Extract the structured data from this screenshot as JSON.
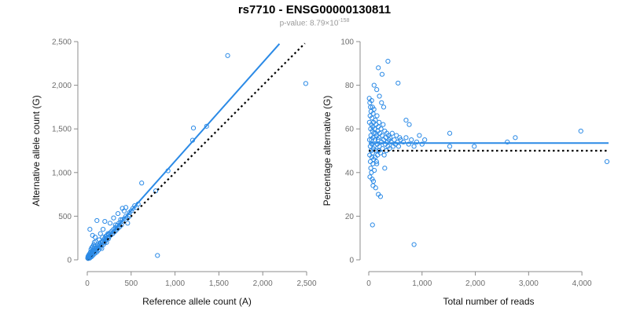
{
  "header": {
    "title": "rs7710 - ENSG00000130811",
    "pvalue_prefix": "p-value: 8.79×10",
    "pvalue_exponent": "-158"
  },
  "colors": {
    "points": "#2b8ae6",
    "fit_line": "#2b8ae6",
    "reference_line": "#000000",
    "axis": "#8c8c8c"
  },
  "chart_data": [
    {
      "type": "scatter",
      "title": "",
      "xlabel": "Reference allele count (A)",
      "ylabel": "Alternative allele count (G)",
      "xlim": [
        0,
        2500
      ],
      "ylim": [
        0,
        2500
      ],
      "xticks": [
        0,
        500,
        1000,
        1500,
        2000,
        2500
      ],
      "yticks": [
        0,
        500,
        1000,
        1500,
        2000,
        2500
      ],
      "xtick_labels": [
        "0",
        "500",
        "1,000",
        "1,500",
        "2,000",
        "2,500"
      ],
      "ytick_labels": [
        "0",
        "500",
        "1,000",
        "1,500",
        "2,000",
        "2,500"
      ],
      "fit_line": {
        "slope": 1.13,
        "intercept": 0,
        "x_end": 2190
      },
      "reference_line": {
        "slope": 1,
        "intercept": 0,
        "x_end": 2480
      },
      "points": [
        [
          5,
          20
        ],
        [
          8,
          35
        ],
        [
          10,
          15
        ],
        [
          12,
          45
        ],
        [
          15,
          30
        ],
        [
          18,
          25
        ],
        [
          20,
          60
        ],
        [
          22,
          40
        ],
        [
          25,
          50
        ],
        [
          28,
          20
        ],
        [
          30,
          75
        ],
        [
          32,
          55
        ],
        [
          35,
          30
        ],
        [
          38,
          90
        ],
        [
          40,
          45
        ],
        [
          42,
          120
        ],
        [
          45,
          65
        ],
        [
          48,
          35
        ],
        [
          50,
          80
        ],
        [
          52,
          140
        ],
        [
          55,
          60
        ],
        [
          58,
          95
        ],
        [
          60,
          150
        ],
        [
          62,
          70
        ],
        [
          65,
          110
        ],
        [
          68,
          55
        ],
        [
          70,
          85
        ],
        [
          72,
          170
        ],
        [
          75,
          95
        ],
        [
          78,
          130
        ],
        [
          80,
          200
        ],
        [
          82,
          90
        ],
        [
          85,
          115
        ],
        [
          88,
          75
        ],
        [
          90,
          155
        ],
        [
          92,
          100
        ],
        [
          95,
          130
        ],
        [
          98,
          210
        ],
        [
          100,
          110
        ],
        [
          105,
          140
        ],
        [
          110,
          90
        ],
        [
          115,
          170
        ],
        [
          120,
          135
        ],
        [
          125,
          110
        ],
        [
          130,
          160
        ],
        [
          135,
          230
        ],
        [
          140,
          150
        ],
        [
          145,
          180
        ],
        [
          150,
          140
        ],
        [
          155,
          200
        ],
        [
          160,
          170
        ],
        [
          165,
          130
        ],
        [
          170,
          195
        ],
        [
          175,
          260
        ],
        [
          180,
          205
        ],
        [
          185,
          175
        ],
        [
          190,
          230
        ],
        [
          195,
          195
        ],
        [
          200,
          250
        ],
        [
          205,
          215
        ],
        [
          210,
          270
        ],
        [
          215,
          235
        ],
        [
          220,
          200
        ],
        [
          225,
          280
        ],
        [
          230,
          255
        ],
        [
          235,
          300
        ],
        [
          240,
          240
        ],
        [
          245,
          290
        ],
        [
          250,
          265
        ],
        [
          260,
          310
        ],
        [
          270,
          285
        ],
        [
          280,
          330
        ],
        [
          290,
          300
        ],
        [
          300,
          350
        ],
        [
          310,
          320
        ],
        [
          320,
          370
        ],
        [
          330,
          340
        ],
        [
          340,
          395
        ],
        [
          350,
          360
        ],
        [
          360,
          420
        ],
        [
          370,
          380
        ],
        [
          380,
          430
        ],
        [
          390,
          400
        ],
        [
          400,
          460
        ],
        [
          420,
          470
        ],
        [
          440,
          500
        ],
        [
          460,
          480
        ],
        [
          480,
          540
        ],
        [
          500,
          560
        ],
        [
          520,
          590
        ],
        [
          540,
          620
        ],
        [
          560,
          600
        ],
        [
          580,
          640
        ],
        [
          30,
          350
        ],
        [
          60,
          280
        ],
        [
          90,
          260
        ],
        [
          110,
          450
        ],
        [
          200,
          440
        ],
        [
          300,
          480
        ],
        [
          350,
          530
        ],
        [
          400,
          590
        ],
        [
          440,
          600
        ],
        [
          480,
          500
        ],
        [
          240,
          290
        ],
        [
          150,
          300
        ],
        [
          180,
          350
        ],
        [
          260,
          420
        ],
        [
          320,
          400
        ],
        [
          380,
          460
        ],
        [
          420,
          560
        ],
        [
          460,
          420
        ],
        [
          620,
          880
        ],
        [
          780,
          790
        ],
        [
          800,
          50
        ],
        [
          920,
          1020
        ],
        [
          1200,
          1370
        ],
        [
          1210,
          1510
        ],
        [
          1360,
          1530
        ],
        [
          1600,
          2340
        ],
        [
          2490,
          2020
        ]
      ]
    },
    {
      "type": "scatter",
      "title": "",
      "xlabel": "Total number of reads",
      "ylabel": "Percentage alternative (G)",
      "xlim": [
        0,
        4500
      ],
      "ylim": [
        0,
        100
      ],
      "xticks": [
        0,
        1000,
        2000,
        3000,
        4000
      ],
      "yticks": [
        0,
        20,
        40,
        60,
        80,
        100
      ],
      "xtick_labels": [
        "0",
        "1,000",
        "2,000",
        "3,000",
        "4,000"
      ],
      "ytick_labels": [
        "0",
        "20",
        "40",
        "60",
        "80",
        "100"
      ],
      "fit_line": {
        "y": 53.5,
        "x_end": 4500
      },
      "reference_line": {
        "y": 50,
        "x_end": 4500
      },
      "points": [
        [
          10,
          74
        ],
        [
          12,
          63
        ],
        [
          15,
          55
        ],
        [
          18,
          48
        ],
        [
          20,
          72
        ],
        [
          22,
          38
        ],
        [
          25,
          66
        ],
        [
          28,
          52
        ],
        [
          30,
          45
        ],
        [
          32,
          70
        ],
        [
          35,
          60
        ],
        [
          38,
          42
        ],
        [
          40,
          57
        ],
        [
          42,
          68
        ],
        [
          45,
          50
        ],
        [
          48,
          62
        ],
        [
          50,
          40
        ],
        [
          52,
          55
        ],
        [
          55,
          73
        ],
        [
          58,
          47
        ],
        [
          60,
          65
        ],
        [
          62,
          53
        ],
        [
          65,
          37
        ],
        [
          68,
          59
        ],
        [
          70,
          70
        ],
        [
          72,
          49
        ],
        [
          75,
          61
        ],
        [
          78,
          44
        ],
        [
          80,
          56
        ],
        [
          82,
          67
        ],
        [
          85,
          51
        ],
        [
          88,
          36
        ],
        [
          90,
          63
        ],
        [
          92,
          46
        ],
        [
          95,
          58
        ],
        [
          98,
          69
        ],
        [
          100,
          52
        ],
        [
          105,
          41
        ],
        [
          110,
          60
        ],
        [
          115,
          55
        ],
        [
          120,
          47
        ],
        [
          125,
          64
        ],
        [
          130,
          58
        ],
        [
          135,
          50
        ],
        [
          140,
          62
        ],
        [
          145,
          45
        ],
        [
          150,
          57
        ],
        [
          155,
          66
        ],
        [
          160,
          53
        ],
        [
          165,
          48
        ],
        [
          170,
          59
        ],
        [
          175,
          55
        ],
        [
          180,
          61
        ],
        [
          185,
          50
        ],
        [
          190,
          56
        ],
        [
          195,
          63
        ],
        [
          200,
          52
        ],
        [
          210,
          58
        ],
        [
          220,
          49
        ],
        [
          230,
          60
        ],
        [
          240,
          54
        ],
        [
          250,
          57
        ],
        [
          260,
          51
        ],
        [
          270,
          62
        ],
        [
          280,
          55
        ],
        [
          290,
          48
        ],
        [
          300,
          59
        ],
        [
          310,
          53
        ],
        [
          320,
          56
        ],
        [
          330,
          50
        ],
        [
          340,
          58
        ],
        [
          350,
          54
        ],
        [
          360,
          52
        ],
        [
          370,
          57
        ],
        [
          380,
          55
        ],
        [
          390,
          51
        ],
        [
          400,
          56
        ],
        [
          420,
          54
        ],
        [
          440,
          58
        ],
        [
          460,
          52
        ],
        [
          480,
          55
        ],
        [
          500,
          53
        ],
        [
          520,
          57
        ],
        [
          540,
          54
        ],
        [
          560,
          52
        ],
        [
          580,
          56
        ],
        [
          600,
          55
        ],
        [
          650,
          54
        ],
        [
          700,
          56
        ],
        [
          750,
          53
        ],
        [
          800,
          55
        ],
        [
          850,
          52
        ],
        [
          900,
          54
        ],
        [
          950,
          57
        ],
        [
          1000,
          53
        ],
        [
          1050,
          55
        ],
        [
          100,
          80
        ],
        [
          150,
          78
        ],
        [
          200,
          75
        ],
        [
          240,
          72
        ],
        [
          280,
          70
        ],
        [
          180,
          88
        ],
        [
          250,
          85
        ],
        [
          360,
          91
        ],
        [
          550,
          81
        ],
        [
          700,
          64
        ],
        [
          760,
          62
        ],
        [
          80,
          34
        ],
        [
          130,
          33
        ],
        [
          180,
          30
        ],
        [
          220,
          29
        ],
        [
          70,
          16
        ],
        [
          150,
          44
        ],
        [
          300,
          42
        ],
        [
          850,
          7
        ],
        [
          1520,
          58
        ],
        [
          1520,
          52
        ],
        [
          1980,
          52
        ],
        [
          2600,
          54
        ],
        [
          2750,
          56
        ],
        [
          3980,
          59
        ],
        [
          4470,
          45
        ]
      ]
    }
  ]
}
